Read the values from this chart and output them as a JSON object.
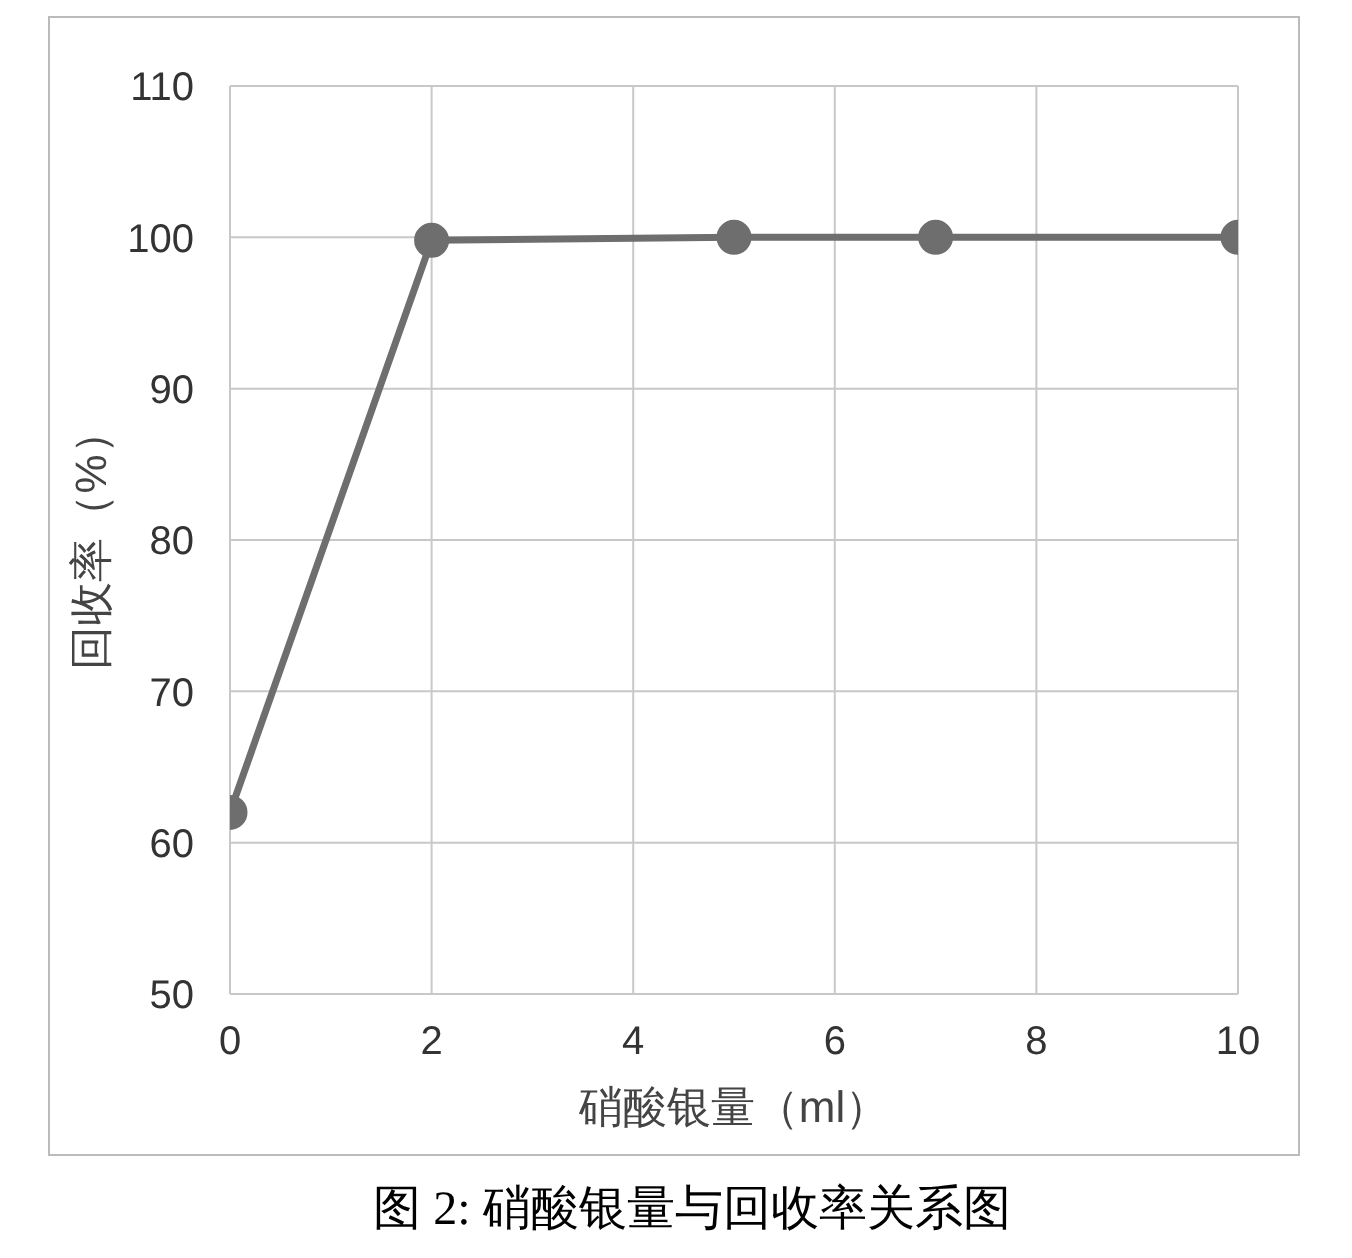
{
  "chart_data": {
    "type": "line",
    "xlabel": "硝酸银量（ml）",
    "ylabel": "回收率（%）",
    "x": [
      0,
      2,
      5,
      7,
      10
    ],
    "series": [
      {
        "color": "#6e6e6e",
        "values": [
          62,
          99.8,
          100,
          100,
          100
        ]
      }
    ],
    "xlim": [
      0,
      10
    ],
    "xticks": [
      0,
      2,
      4,
      6,
      8,
      10
    ],
    "ylim": [
      50,
      110
    ],
    "yticks": [
      50,
      60,
      70,
      80,
      90,
      100,
      110
    ],
    "grid": true,
    "marker": "circle",
    "line_style": "solid",
    "annotations": [
      "图 2: 硝酸银量与回收率关系图"
    ]
  }
}
